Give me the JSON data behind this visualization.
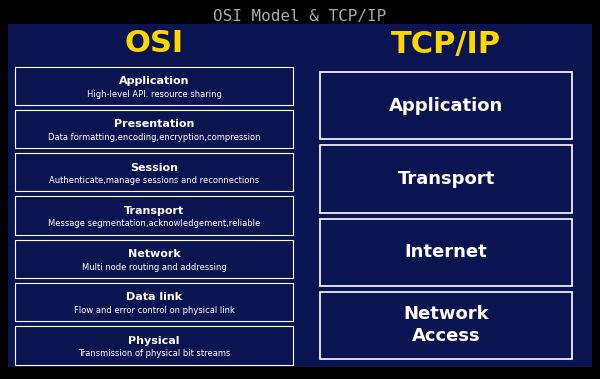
{
  "title": "OSI Model & TCP/IP",
  "bg_color": "#0A1450",
  "outer_bg": "#000000",
  "title_color": "#AAAAAA",
  "header_color": "#FFD700",
  "box_edge_color": "#FFFFFF",
  "text_color_white": "#FFFFFF",
  "osi_header": "OSI",
  "tcp_header": "TCP/IP",
  "osi_layers": [
    {
      "name": "Application",
      "desc": "High-level API. resource sharing"
    },
    {
      "name": "Presentation",
      "desc": "Data formatting,encoding,encryption,compression"
    },
    {
      "name": "Session",
      "desc": "Authenticate,manage sessions and reconnections"
    },
    {
      "name": "Transport",
      "desc": "Message segmentation,acknowledgement,reliable"
    },
    {
      "name": "Network",
      "desc": "Multi node routing and addressing"
    },
    {
      "name": "Data link",
      "desc": "Flow and error control on physical link"
    },
    {
      "name": "Physical",
      "desc": "Transmission of physical bit streams"
    }
  ],
  "tcp_layers": [
    "Application",
    "Transport",
    "Internet",
    "Network\nAccess"
  ],
  "fig_w": 6.0,
  "fig_h": 3.79,
  "dpi": 100
}
